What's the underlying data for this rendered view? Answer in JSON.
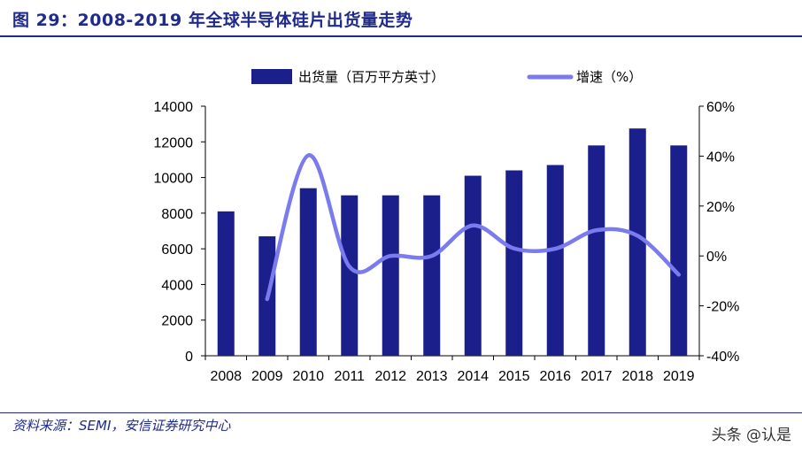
{
  "header": {
    "title": "图 29：2008-2019 年全球半导体硅片出货量走势"
  },
  "footer": {
    "source": "资料来源：SEMI，安信证券研究中心",
    "watermark": "头条 @认是"
  },
  "chart_data": {
    "type": "bar+line",
    "categories": [
      "2008",
      "2009",
      "2010",
      "2011",
      "2012",
      "2013",
      "2014",
      "2015",
      "2016",
      "2017",
      "2018",
      "2019"
    ],
    "series": [
      {
        "name": "出货量（百万平方英寸）",
        "type": "bar",
        "axis": "left",
        "color": "#1a1f8c",
        "values": [
          8100,
          6700,
          9400,
          9000,
          9000,
          9000,
          10100,
          10400,
          10700,
          11800,
          12750,
          11800
        ]
      },
      {
        "name": "增速（%）",
        "type": "line",
        "axis": "right",
        "color": "#7b7bf0",
        "values": [
          null,
          -17.3,
          40.3,
          -4.3,
          0.0,
          0.0,
          12.2,
          3.0,
          2.9,
          10.3,
          8.1,
          -7.5
        ]
      }
    ],
    "y_left": {
      "min": 0,
      "max": 14000,
      "ticks": [
        "0",
        "2000",
        "4000",
        "6000",
        "8000",
        "10000",
        "12000",
        "14000"
      ]
    },
    "y_right": {
      "min": -40,
      "max": 60,
      "ticks": [
        "-40%",
        "-20%",
        "0%",
        "20%",
        "40%",
        "60%"
      ]
    },
    "legend": "top-center",
    "grid": false
  }
}
